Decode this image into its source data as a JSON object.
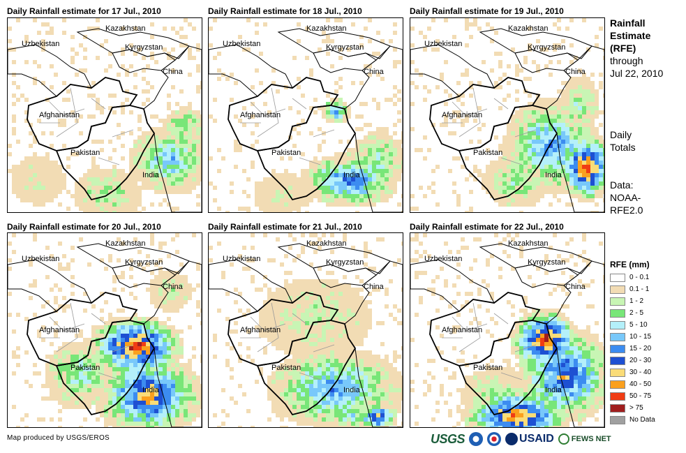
{
  "panels": [
    {
      "title": "Daily Rainfall estimate for 17 Jul., 2010"
    },
    {
      "title": "Daily Rainfall estimate for 18 Jul., 2010"
    },
    {
      "title": "Daily Rainfall estimate for 19 Jul., 2010"
    },
    {
      "title": "Daily Rainfall estimate for 20 Jul., 2010"
    },
    {
      "title": "Daily Rainfall estimate for 21 Jul., 2010"
    },
    {
      "title": "Daily Rainfall estimate for 22 Jul., 2010"
    }
  ],
  "map_labels": {
    "kazakhstan": "Kazakhstan",
    "uzbekistan": "Uzbekistan",
    "kyrgyzstan": "Kyrgyzstan",
    "china": "China",
    "afghanistan": "Afghanistan",
    "pakistan": "Pakistan",
    "india": "India"
  },
  "sidebar": {
    "title_bold": [
      "Rainfall",
      "Estimate"
    ],
    "title_line3": "(RFE)",
    "title_line4": "through",
    "title_line5": "Jul 22, 2010",
    "daily_1": "Daily",
    "daily_2": "Totals",
    "data_1": "Data:",
    "data_2": "NOAA-",
    "data_3": "RFE2.0"
  },
  "legend": {
    "title": "RFE (mm)",
    "items": [
      {
        "label": "0 - 0.1",
        "color": "#ffffff"
      },
      {
        "label": "0.1 - 1",
        "color": "#f2dcb4"
      },
      {
        "label": "1 - 2",
        "color": "#c8f5b4"
      },
      {
        "label": "2 - 5",
        "color": "#78e678"
      },
      {
        "label": "5 - 10",
        "color": "#b4f0fa"
      },
      {
        "label": "10 - 15",
        "color": "#78c8fa"
      },
      {
        "label": "15 - 20",
        "color": "#3c8cf0"
      },
      {
        "label": "20 - 30",
        "color": "#1e50d2"
      },
      {
        "label": "30 - 40",
        "color": "#fadc78"
      },
      {
        "label": "40 - 50",
        "color": "#faa01e"
      },
      {
        "label": "50 - 75",
        "color": "#f03c14"
      },
      {
        "label": "> 75",
        "color": "#a01e1e"
      },
      {
        "label": "No Data",
        "color": "#a0a0a0"
      }
    ]
  },
  "footer": {
    "credit": "Map produced by USGS/EROS",
    "logo_usgs": "USGS",
    "logo_usaid": "USAID",
    "logo_fews": "FEWS NET"
  }
}
